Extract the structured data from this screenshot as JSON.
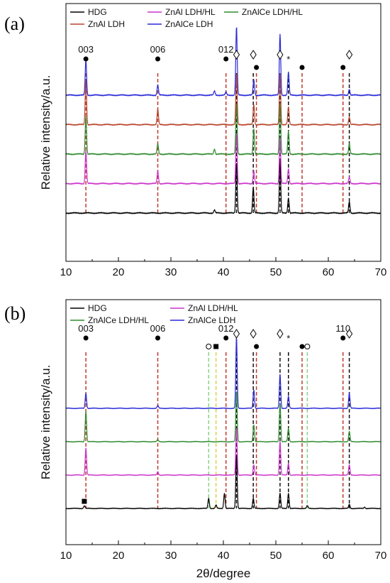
{
  "chart_data": [
    {
      "type": "line",
      "panel_label": "(a)",
      "xlabel": "2θ/degree",
      "ylabel": "Relative intensity/a.u.",
      "xlim": [
        10,
        70
      ],
      "xticks": [
        "10",
        "20",
        "30",
        "40",
        "50",
        "60",
        "70"
      ],
      "legend": {
        "placement": "top",
        "entries": [
          {
            "name": "HDG",
            "color": "#000000"
          },
          {
            "name": "ZnAl LDH/HL",
            "color": "#cc33cc"
          },
          {
            "name": "ZnAlCe LDH/HL",
            "color": "#2e8b2e"
          },
          {
            "name": "ZnAl LDH",
            "color": "#b8462e"
          },
          {
            "name": "ZnAlCe LDH",
            "color": "#2a2ad8"
          }
        ]
      },
      "series": [
        {
          "name": "HDG",
          "color": "#000000",
          "offset": 0,
          "peaks": [
            [
              38.3,
              0.06
            ],
            [
              42.5,
              1.0
            ],
            [
              45.7,
              0.5
            ],
            [
              50.8,
              1.0
            ],
            [
              52.4,
              0.3
            ],
            [
              64.0,
              0.22
            ]
          ]
        },
        {
          "name": "ZnAl LDH/HL",
          "color": "#cc33cc",
          "offset": 1,
          "peaks": [
            [
              13.8,
              0.65
            ],
            [
              27.5,
              0.25
            ],
            [
              42.5,
              1.0
            ],
            [
              45.8,
              0.25
            ],
            [
              50.8,
              0.9
            ],
            [
              52.4,
              0.3
            ],
            [
              64.0,
              0.12
            ]
          ]
        },
        {
          "name": "ZnAlCe LDH/HL",
          "color": "#2e8b2e",
          "offset": 2,
          "peaks": [
            [
              13.8,
              0.75
            ],
            [
              27.5,
              0.2
            ],
            [
              38.3,
              0.1
            ],
            [
              42.5,
              1.0
            ],
            [
              45.8,
              0.5
            ],
            [
              50.8,
              1.0
            ],
            [
              52.4,
              0.45
            ],
            [
              64.0,
              0.2
            ]
          ]
        },
        {
          "name": "ZnAl LDH",
          "color": "#b8462e",
          "offset": 3,
          "peaks": [
            [
              13.8,
              0.9
            ],
            [
              27.5,
              0.3
            ],
            [
              42.5,
              1.0
            ],
            [
              45.8,
              0.4
            ],
            [
              50.8,
              1.0
            ],
            [
              52.4,
              0.35
            ],
            [
              64.0,
              0.15
            ]
          ]
        },
        {
          "name": "ZnAlCe LDH",
          "color": "#2a2ad8",
          "offset": 4,
          "peaks": [
            [
              13.8,
              0.7
            ],
            [
              27.5,
              0.2
            ],
            [
              38.3,
              0.08
            ],
            [
              40.5,
              0.06
            ],
            [
              42.5,
              1.35
            ],
            [
              45.8,
              0.3
            ],
            [
              50.8,
              1.2
            ],
            [
              52.4,
              0.45
            ],
            [
              64.0,
              0.12
            ]
          ]
        }
      ],
      "reference_lines": [
        {
          "x": 13.8,
          "style": "red"
        },
        {
          "x": 27.5,
          "style": "red"
        },
        {
          "x": 40.5,
          "style": "red"
        },
        {
          "x": 42.5,
          "style": "black"
        },
        {
          "x": 45.7,
          "style": "black"
        },
        {
          "x": 46.3,
          "style": "red"
        },
        {
          "x": 50.8,
          "style": "black"
        },
        {
          "x": 52.4,
          "style": "black"
        },
        {
          "x": 55.0,
          "style": "red"
        },
        {
          "x": 62.8,
          "style": "red"
        },
        {
          "x": 64.0,
          "style": "black"
        }
      ],
      "annotations": [
        {
          "x": 13.8,
          "marker": "dot",
          "text": "003"
        },
        {
          "x": 27.5,
          "marker": "dot",
          "text": "006"
        },
        {
          "x": 40.5,
          "marker": "dot",
          "text": "012"
        },
        {
          "x": 42.5,
          "marker": "diamond",
          "text": ""
        },
        {
          "x": 45.7,
          "marker": "diamond",
          "text": ""
        },
        {
          "x": 46.3,
          "marker": "dot",
          "text": ""
        },
        {
          "x": 50.8,
          "marker": "diamond",
          "text": ""
        },
        {
          "x": 52.4,
          "marker": "star",
          "text": ""
        },
        {
          "x": 55.0,
          "marker": "dot",
          "text": ""
        },
        {
          "x": 62.8,
          "marker": "dot",
          "text": ""
        },
        {
          "x": 64.0,
          "marker": "diamond",
          "text": ""
        }
      ]
    },
    {
      "type": "line",
      "panel_label": "(b)",
      "xlabel": "2θ/degree",
      "ylabel": "Relative intensity/a.u.",
      "xlim": [
        10,
        70
      ],
      "xticks": [
        "10",
        "20",
        "30",
        "40",
        "50",
        "60",
        "70"
      ],
      "legend": {
        "placement": "top",
        "entries": [
          {
            "name": "HDG",
            "color": "#000000"
          },
          {
            "name": "ZnAl LDH/HL",
            "color": "#cc33cc"
          },
          {
            "name": "ZnAlCe LDH/HL",
            "color": "#2e8b2e"
          },
          {
            "name": "ZnAlCe LDH",
            "color": "#2a2ad8"
          }
        ]
      },
      "series": [
        {
          "name": "HDG",
          "color": "#000000",
          "offset": 0,
          "peaks": [
            [
              13.5,
              0.08
            ],
            [
              37.2,
              0.3
            ],
            [
              38.6,
              0.1
            ],
            [
              40.2,
              0.45
            ],
            [
              42.5,
              1.6
            ],
            [
              45.7,
              0.3
            ],
            [
              50.8,
              0.45
            ],
            [
              52.4,
              0.45
            ],
            [
              56.0,
              0.08
            ],
            [
              64.0,
              0.12
            ],
            [
              66.9,
              0.04
            ]
          ]
        },
        {
          "name": "ZnAl LDH/HL",
          "color": "#cc33cc",
          "offset": 1,
          "peaks": [
            [
              13.8,
              0.8
            ],
            [
              27.5,
              0.1
            ],
            [
              42.5,
              1.4
            ],
            [
              45.8,
              0.3
            ],
            [
              50.8,
              1.0
            ],
            [
              52.4,
              0.35
            ],
            [
              64.0,
              0.3
            ]
          ]
        },
        {
          "name": "ZnAlCe LDH/HL",
          "color": "#2e8b2e",
          "offset": 2,
          "peaks": [
            [
              13.8,
              0.9
            ],
            [
              27.5,
              0.06
            ],
            [
              42.5,
              1.5
            ],
            [
              45.8,
              0.5
            ],
            [
              50.8,
              1.15
            ],
            [
              52.4,
              0.4
            ],
            [
              64.0,
              0.3
            ]
          ]
        },
        {
          "name": "ZnAlCe LDH",
          "color": "#2a2ad8",
          "offset": 3,
          "peaks": [
            [
              13.8,
              0.45
            ],
            [
              27.5,
              0.08
            ],
            [
              42.5,
              2.1
            ],
            [
              45.8,
              0.55
            ],
            [
              50.8,
              1.0
            ],
            [
              52.4,
              0.35
            ],
            [
              64.0,
              0.45
            ]
          ]
        }
      ],
      "reference_lines": [
        {
          "x": 13.8,
          "style": "red"
        },
        {
          "x": 27.5,
          "style": "red"
        },
        {
          "x": 37.2,
          "style": "green"
        },
        {
          "x": 38.6,
          "style": "yellow"
        },
        {
          "x": 40.5,
          "style": "red"
        },
        {
          "x": 42.5,
          "style": "black"
        },
        {
          "x": 45.7,
          "style": "black"
        },
        {
          "x": 46.3,
          "style": "red"
        },
        {
          "x": 50.8,
          "style": "black"
        },
        {
          "x": 52.4,
          "style": "black"
        },
        {
          "x": 55.0,
          "style": "red"
        },
        {
          "x": 56.0,
          "style": "green"
        },
        {
          "x": 62.8,
          "style": "red"
        },
        {
          "x": 64.0,
          "style": "black"
        }
      ],
      "annotations": [
        {
          "x": 13.8,
          "marker": "dot",
          "text": "003"
        },
        {
          "x": 27.5,
          "marker": "dot",
          "text": "006"
        },
        {
          "x": 37.2,
          "marker": "circle",
          "text": ""
        },
        {
          "x": 38.6,
          "marker": "square",
          "text": ""
        },
        {
          "x": 40.5,
          "marker": "dot",
          "text": "012"
        },
        {
          "x": 42.5,
          "marker": "diamond",
          "text": ""
        },
        {
          "x": 45.7,
          "marker": "diamond",
          "text": ""
        },
        {
          "x": 46.3,
          "marker": "dot",
          "text": ""
        },
        {
          "x": 50.8,
          "marker": "diamond",
          "text": ""
        },
        {
          "x": 52.4,
          "marker": "star",
          "text": ""
        },
        {
          "x": 55.0,
          "marker": "dot",
          "text": ""
        },
        {
          "x": 56.0,
          "marker": "circle",
          "text": ""
        },
        {
          "x": 62.8,
          "marker": "dot",
          "text": "110"
        },
        {
          "x": 64.0,
          "marker": "diamond",
          "text": ""
        },
        {
          "x": 13.5,
          "marker": "square",
          "text": ""
        }
      ]
    }
  ],
  "colors": {
    "red_ref": "#c0392b",
    "black_ref": "#111111",
    "green_ref": "#7fd87f",
    "yellow_ref": "#d6d64a"
  }
}
